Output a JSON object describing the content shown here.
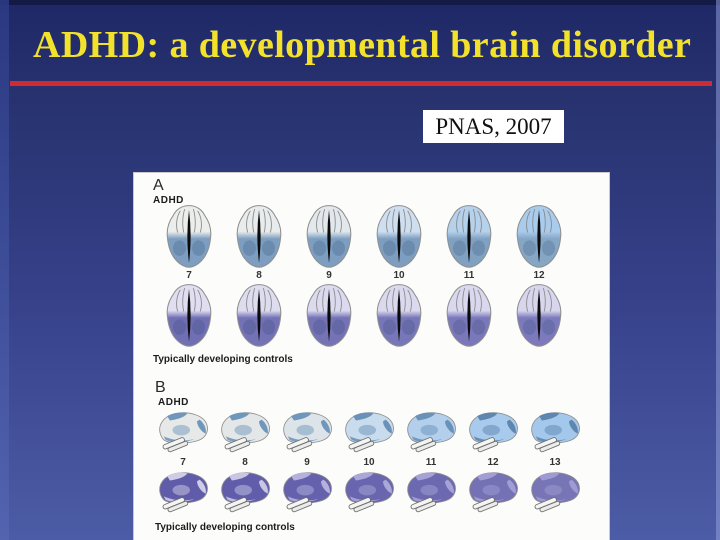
{
  "slide": {
    "title": "ADHD: a developmental brain disorder",
    "citation": "PNAS, 2007"
  },
  "colors": {
    "title_text": "#f2e22b",
    "divider_red": "#d02a32",
    "background_top": "#1f2867",
    "background_bottom": "#4d5ca6",
    "figure_background": "#fcfcfa"
  },
  "figure": {
    "panelA": {
      "label": "A",
      "top_group_label": "ADHD",
      "ages": [
        "7",
        "8",
        "9",
        "10",
        "11",
        "12"
      ],
      "bottom_group_label": "Typically developing controls",
      "view": "axial",
      "adhd_brain_colors": [
        {
          "front": "#eceeec",
          "back": "#7d9ec0"
        },
        {
          "front": "#e9ecec",
          "back": "#7d9ec0"
        },
        {
          "front": "#e2e8ec",
          "back": "#7d9ec0"
        },
        {
          "front": "#cfdff0",
          "back": "#7d9ec0"
        },
        {
          "front": "#b5d1ec",
          "back": "#81a1c2"
        },
        {
          "front": "#a9cbec",
          "back": "#86a6c6"
        }
      ],
      "control_brain_colors": [
        {
          "front": "#e0def0",
          "back": "#716fb4"
        },
        {
          "front": "#dedcef",
          "back": "#7472b6"
        },
        {
          "front": "#dcdaee",
          "back": "#7573b6"
        },
        {
          "front": "#dbd9ee",
          "back": "#7776b8"
        },
        {
          "front": "#dad8ee",
          "back": "#7a78ba"
        },
        {
          "front": "#d8d6ed",
          "back": "#7c7abc"
        }
      ]
    },
    "panelB": {
      "label": "B",
      "top_group_label": "ADHD",
      "ages": [
        "7",
        "8",
        "9",
        "10",
        "11",
        "12",
        "13"
      ],
      "bottom_group_label": "Typically developing controls",
      "view": "sagittal",
      "adhd_brain_colors": [
        {
          "base": "#e7e9e8",
          "patch": "#6f97bc"
        },
        {
          "base": "#e4e7e8",
          "patch": "#6f97bc"
        },
        {
          "base": "#dde4e9",
          "patch": "#6f97bc"
        },
        {
          "base": "#c9dcee",
          "patch": "#6a92b8"
        },
        {
          "base": "#b3cfec",
          "patch": "#6a92b8"
        },
        {
          "base": "#a8caec",
          "patch": "#5f86ae"
        },
        {
          "base": "#a4c8ec",
          "patch": "#5f86ae"
        }
      ],
      "control_brain_colors": [
        {
          "base": "#605ca9",
          "patch": "#cfcce8"
        },
        {
          "base": "#615daa",
          "patch": "#c8c5e5"
        },
        {
          "base": "#6561ac",
          "patch": "#b5b1dc"
        },
        {
          "base": "#6965ae",
          "patch": "#aba7d8"
        },
        {
          "base": "#6d69b1",
          "patch": "#a6a2d6"
        },
        {
          "base": "#7471b4",
          "patch": "#a29ed4"
        },
        {
          "base": "#7875b6",
          "patch": "#9f9bd2"
        }
      ]
    }
  }
}
